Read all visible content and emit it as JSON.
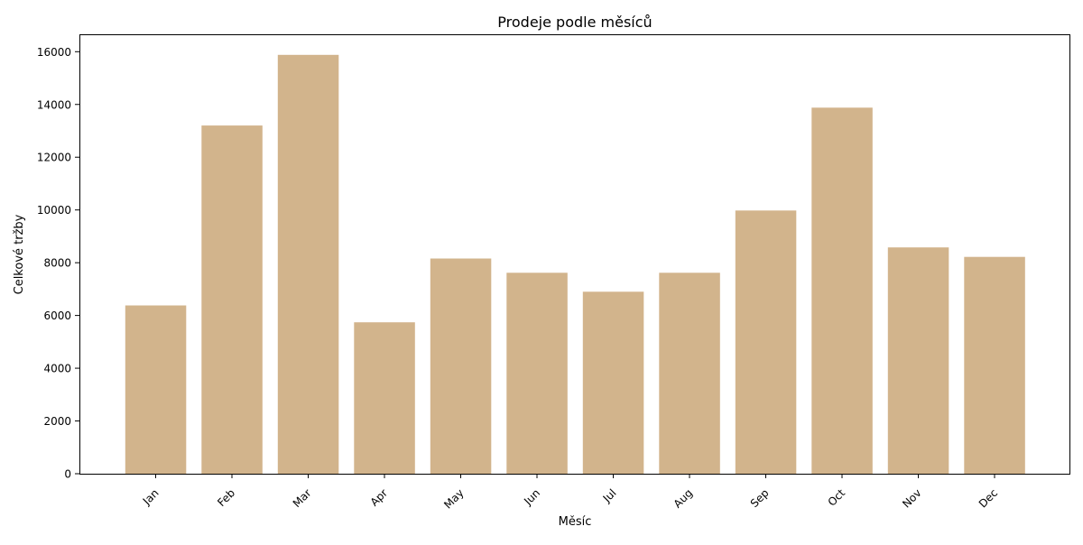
{
  "chart_data": {
    "type": "bar",
    "title": "Prodeje podle měsíců",
    "xlabel": "Měsíc",
    "ylabel": "Celkové tržby",
    "categories": [
      "Jan",
      "Feb",
      "Mar",
      "Apr",
      "May",
      "Jun",
      "Jul",
      "Aug",
      "Sep",
      "Oct",
      "Nov",
      "Dec"
    ],
    "values": [
      6380,
      13200,
      15880,
      5740,
      8160,
      7620,
      6900,
      7620,
      9980,
      13880,
      8580,
      8220
    ],
    "ylim": [
      0,
      16660
    ],
    "yticks": [
      0,
      2000,
      4000,
      6000,
      8000,
      10000,
      12000,
      14000,
      16000
    ],
    "bar_color": "#d2b48c",
    "grid": false,
    "legend": "none"
  }
}
